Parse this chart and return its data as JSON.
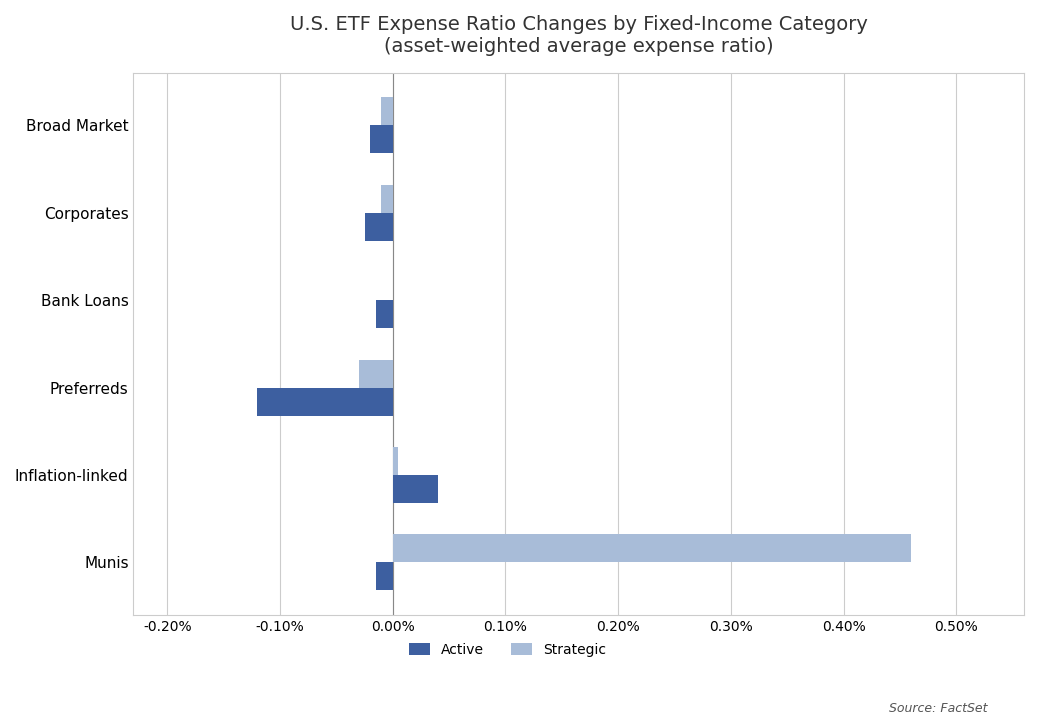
{
  "title_line1": "U.S. ETF Expense Ratio Changes by Fixed-Income Category",
  "title_line2": "(asset-weighted average expense ratio)",
  "source": "Source: FactSet",
  "categories": [
    "Broad Market",
    "Corporates",
    "Bank Loans",
    "Preferreds",
    "Inflation-linked",
    "Munis"
  ],
  "active": [
    -0.0002,
    -0.00025,
    -0.00015,
    -0.0012,
    0.0004,
    -0.00015
  ],
  "strategic": [
    -0.0001,
    -0.0001,
    0.0,
    -0.0003,
    5e-05,
    0.0046
  ],
  "active_color": "#3d5fa0",
  "strategic_color": "#a8bcd8",
  "xlim_min": -0.0023,
  "xlim_max": 0.0056,
  "xticks": [
    -0.002,
    -0.001,
    0.0,
    0.001,
    0.002,
    0.003,
    0.004,
    0.005
  ],
  "xtick_labels": [
    "-0.20%",
    "-0.10%",
    "0.00%",
    "0.10%",
    "0.20%",
    "0.30%",
    "0.40%",
    "0.50%"
  ],
  "background_color": "#ffffff",
  "grid_color": "#cccccc",
  "bar_height": 0.32,
  "legend_active": "Active",
  "legend_strategic": "Strategic",
  "title_fontsize": 14,
  "label_fontsize": 11,
  "tick_fontsize": 10,
  "source_fontsize": 9
}
